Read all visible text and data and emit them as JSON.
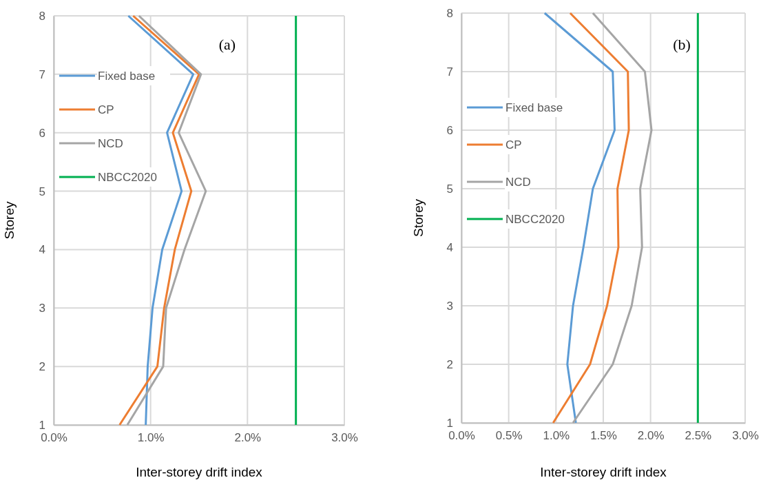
{
  "chart_data": [
    {
      "type": "line",
      "annotations": [
        "(a)"
      ],
      "xlabel": "Inter-storey drift index",
      "ylabel": "Storey",
      "xlim": [
        0,
        3
      ],
      "ylim": [
        1,
        8
      ],
      "xticks": [
        {
          "value": 0,
          "label": "0.0%"
        },
        {
          "value": 1,
          "label": "1.0%"
        },
        {
          "value": 2,
          "label": "2.0%"
        },
        {
          "value": 3,
          "label": "3.0%"
        }
      ],
      "yticks": [
        1,
        2,
        3,
        4,
        5,
        6,
        7,
        8
      ],
      "grid": true,
      "legend": "left",
      "marker": "none",
      "series": [
        {
          "name": "Fixed base",
          "color": "#5b9bd5",
          "x": [
            0.95,
            0.97,
            1.02,
            1.12,
            1.32,
            1.17,
            1.44,
            0.77
          ],
          "values": [
            1,
            2,
            3,
            4,
            5,
            6,
            7,
            8
          ]
        },
        {
          "name": "CP",
          "color": "#ed7d31",
          "x": [
            0.68,
            1.07,
            1.14,
            1.25,
            1.42,
            1.23,
            1.5,
            0.82
          ],
          "values": [
            1,
            2,
            3,
            4,
            5,
            6,
            7,
            8
          ]
        },
        {
          "name": "NCD",
          "color": "#a5a5a5",
          "x": [
            0.76,
            1.13,
            1.16,
            1.35,
            1.57,
            1.29,
            1.52,
            0.88
          ],
          "values": [
            1,
            2,
            3,
            4,
            5,
            6,
            7,
            8
          ]
        },
        {
          "name": "NBCC2020",
          "color": "#00b050",
          "x": [
            2.5,
            2.5
          ],
          "values": [
            1,
            8
          ]
        }
      ]
    },
    {
      "type": "line",
      "annotations": [
        "(b)"
      ],
      "xlabel": "Inter-storey drift index",
      "ylabel": "Storey",
      "xlim": [
        0,
        3
      ],
      "ylim": [
        1,
        8
      ],
      "xticks": [
        {
          "value": 0,
          "label": "0.0%"
        },
        {
          "value": 0.5,
          "label": "0.5%"
        },
        {
          "value": 1,
          "label": "1.0%"
        },
        {
          "value": 1.5,
          "label": "1.5%"
        },
        {
          "value": 2,
          "label": "2.0%"
        },
        {
          "value": 2.5,
          "label": "2.5%"
        },
        {
          "value": 3,
          "label": "3.0%"
        }
      ],
      "yticks": [
        1,
        2,
        3,
        4,
        5,
        6,
        7,
        8
      ],
      "grid": true,
      "legend": "left",
      "marker": "none",
      "series": [
        {
          "name": "Fixed base",
          "color": "#5b9bd5",
          "x": [
            1.21,
            1.12,
            1.18,
            1.29,
            1.39,
            1.62,
            1.6,
            0.88
          ],
          "values": [
            1,
            2,
            3,
            4,
            5,
            6,
            7,
            8
          ]
        },
        {
          "name": "CP",
          "color": "#ed7d31",
          "x": [
            0.97,
            1.36,
            1.54,
            1.66,
            1.65,
            1.77,
            1.76,
            1.15
          ],
          "values": [
            1,
            2,
            3,
            4,
            5,
            6,
            7,
            8
          ]
        },
        {
          "name": "NCD",
          "color": "#a5a5a5",
          "x": [
            1.18,
            1.6,
            1.8,
            1.91,
            1.89,
            2.01,
            1.94,
            1.39
          ],
          "values": [
            1,
            2,
            3,
            4,
            5,
            6,
            7,
            8
          ]
        },
        {
          "name": "NBCC2020",
          "color": "#00b050",
          "x": [
            2.5,
            2.5
          ],
          "values": [
            1,
            8
          ]
        }
      ]
    }
  ]
}
